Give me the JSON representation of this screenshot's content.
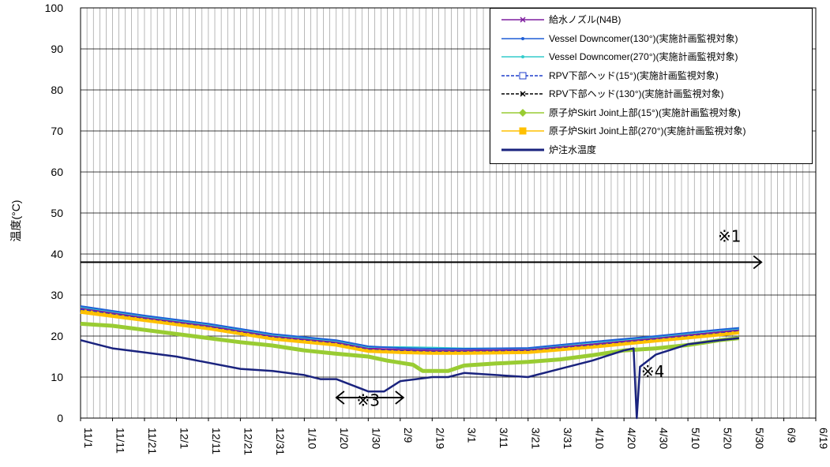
{
  "chart_data": {
    "type": "line",
    "ylabel": "温度(°C)",
    "ylim": [
      0,
      100
    ],
    "yticks": [
      0,
      10,
      20,
      30,
      40,
      50,
      60,
      70,
      80,
      90,
      100
    ],
    "xlim": [
      "11/1",
      "6/19"
    ],
    "xtick_labels": [
      "11/1",
      "11/11",
      "11/21",
      "12/1",
      "12/11",
      "12/21",
      "12/31",
      "1/10",
      "1/20",
      "1/30",
      "2/9",
      "2/19",
      "3/1",
      "3/11",
      "3/21",
      "3/31",
      "4/10",
      "4/20",
      "4/30",
      "5/10",
      "5/20",
      "5/30",
      "6/9",
      "6/19"
    ],
    "grid": true,
    "legend_position": "top-right",
    "series": [
      {
        "name": "給水ノズル(N4B)",
        "color": "#7f1f9f",
        "marker": "cross",
        "x": [
          "11/1",
          "11/21",
          "12/11",
          "12/31",
          "1/20",
          "1/30",
          "2/9",
          "2/19",
          "3/1",
          "3/21",
          "4/10",
          "4/30",
          "5/20",
          "5/26"
        ],
        "y": [
          26.8,
          24.5,
          22.5,
          20.0,
          18.5,
          17.0,
          16.7,
          16.5,
          16.5,
          16.7,
          18.0,
          19.5,
          21.0,
          21.5
        ]
      },
      {
        "name": "Vessel Downcomer(130°)(実施計画監視対象)",
        "color": "#1f5fd6",
        "marker": "dot",
        "x": [
          "11/1",
          "11/21",
          "12/11",
          "12/31",
          "1/20",
          "1/30",
          "2/9",
          "2/19",
          "3/1",
          "3/21",
          "4/10",
          "4/30",
          "5/20",
          "5/26"
        ],
        "y": [
          27.3,
          25.0,
          23.0,
          20.5,
          19.0,
          17.5,
          17.1,
          16.9,
          16.9,
          17.1,
          18.6,
          20.0,
          21.6,
          22.0
        ]
      },
      {
        "name": "Vessel Downcomer(270°)(実施計画監視対象)",
        "color": "#33cccc",
        "marker": "dot",
        "x": [
          "11/1",
          "11/21",
          "12/11",
          "12/31",
          "1/20",
          "1/30",
          "2/9",
          "2/19",
          "3/1",
          "3/21",
          "4/10",
          "4/30",
          "5/20",
          "5/26"
        ],
        "y": [
          27.1,
          24.8,
          22.8,
          20.3,
          18.8,
          17.3,
          17.3,
          17.2,
          17.0,
          17.0,
          18.4,
          19.8,
          21.4,
          21.8
        ]
      },
      {
        "name": "RPV下部ヘッド(15°)(実施計画監視対象)",
        "color": "#1f3fcc",
        "marker": "square",
        "dash": "dashed",
        "x": [
          "11/1",
          "11/21",
          "12/11",
          "12/31",
          "1/20",
          "1/30",
          "2/9",
          "2/19",
          "3/1",
          "3/21",
          "4/10",
          "4/30",
          "5/20",
          "5/26"
        ],
        "y": [
          26.6,
          24.4,
          22.4,
          19.9,
          18.4,
          16.9,
          16.6,
          16.4,
          16.4,
          16.6,
          17.9,
          19.4,
          20.9,
          21.4
        ]
      },
      {
        "name": "RPV下部ヘッド(130°)(実施計画監視対象)",
        "color": "#000000",
        "marker": "cross",
        "dash": "dashed",
        "x": [
          "11/1",
          "11/21",
          "12/11",
          "12/31",
          "1/20",
          "1/30",
          "2/9",
          "2/19",
          "3/1",
          "3/21",
          "4/10",
          "4/30",
          "5/20",
          "5/26"
        ],
        "y": [
          26.5,
          24.3,
          22.3,
          19.8,
          18.3,
          16.8,
          16.5,
          16.3,
          16.3,
          16.5,
          17.8,
          19.3,
          20.8,
          21.3
        ]
      },
      {
        "name": "原子炉Skirt Joint上部(15°)(実施計画監視対象)",
        "color": "#99cc33",
        "marker": "diamond",
        "x": [
          "11/1",
          "11/11",
          "11/21",
          "12/1",
          "12/11",
          "12/21",
          "12/31",
          "1/10",
          "1/20",
          "1/30",
          "2/5",
          "2/13",
          "2/16",
          "2/24",
          "3/1",
          "3/11",
          "3/21",
          "3/31",
          "4/10",
          "4/20",
          "4/30",
          "5/10",
          "5/20",
          "5/26"
        ],
        "y": [
          23.0,
          22.5,
          21.5,
          20.5,
          19.5,
          18.5,
          17.7,
          16.5,
          15.7,
          15.0,
          14.0,
          13.0,
          11.5,
          11.5,
          12.8,
          13.3,
          13.7,
          14.3,
          15.3,
          16.5,
          17.0,
          17.8,
          19.0,
          19.5
        ]
      },
      {
        "name": "原子炉Skirt Joint上部(270°)(実施計画監視対象)",
        "color": "#ffc000",
        "marker": "square",
        "x": [
          "11/1",
          "11/21",
          "12/11",
          "12/31",
          "1/20",
          "1/30",
          "2/9",
          "2/19",
          "3/1",
          "3/21",
          "4/10",
          "4/30",
          "5/20",
          "5/26"
        ],
        "y": [
          26.0,
          24.0,
          22.0,
          19.5,
          18.0,
          16.5,
          16.2,
          16.0,
          16.0,
          16.2,
          17.5,
          19.0,
          20.5,
          21.0
        ]
      },
      {
        "name": "炉注水温度",
        "color": "#1a237e",
        "marker": "none",
        "x": [
          "11/1",
          "11/11",
          "11/21",
          "12/1",
          "12/11",
          "12/21",
          "12/31",
          "1/10",
          "1/15",
          "1/20",
          "1/30",
          "2/4",
          "2/9",
          "2/14",
          "2/19",
          "2/24",
          "3/1",
          "3/11",
          "3/21",
          "3/31",
          "4/10",
          "4/20",
          "4/23",
          "4/24",
          "4/25",
          "4/30",
          "5/10",
          "5/20",
          "5/26"
        ],
        "y": [
          19.0,
          17.0,
          16.0,
          15.0,
          13.5,
          12.0,
          11.5,
          10.5,
          9.5,
          9.5,
          6.5,
          6.5,
          9.0,
          9.5,
          10.0,
          10.0,
          11.0,
          10.5,
          10.0,
          12.0,
          14.0,
          16.5,
          17.0,
          0.0,
          12.5,
          15.5,
          18.0,
          19.0,
          19.5
        ]
      }
    ],
    "annotations": [
      {
        "text": "※1",
        "x": "5/23",
        "y": 43
      },
      {
        "text": "※3",
        "x": "1/30",
        "y": 3
      },
      {
        "text": "※4",
        "x": "4/29",
        "y": 10
      }
    ],
    "arrows": [
      {
        "from": [
          "11/1",
          38
        ],
        "to": [
          "6/2",
          38
        ]
      },
      {
        "from": [
          "1/20",
          5
        ],
        "to": [
          "2/10",
          5
        ],
        "double": true
      }
    ]
  }
}
